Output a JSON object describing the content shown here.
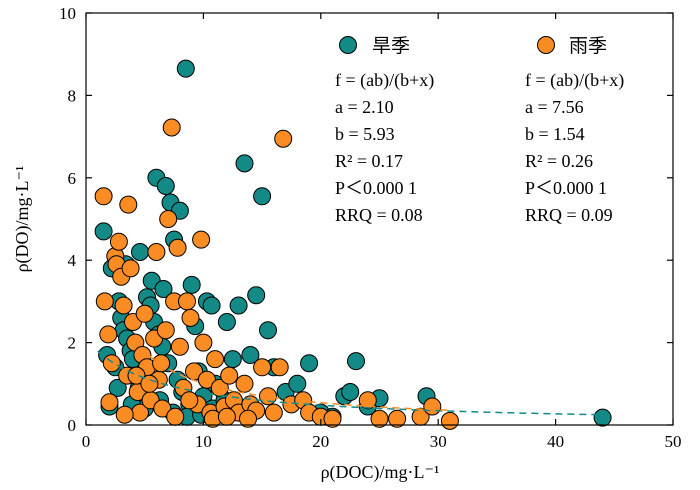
{
  "chart_data": {
    "type": "scatter",
    "xlabel": "ρ(DOC)/mg·L⁻¹",
    "ylabel": "ρ(DO)/mg·L⁻¹",
    "xlim": [
      0,
      50
    ],
    "ylim": [
      0,
      10
    ],
    "x_ticks": [
      "0",
      "10",
      "20",
      "30",
      "40",
      "50"
    ],
    "y_ticks": [
      "0",
      "2",
      "4",
      "6",
      "8",
      "10"
    ],
    "grid": false,
    "legend_position": "top-right",
    "series": [
      {
        "name": "旱季",
        "color": "#138a86",
        "fit": {
          "a": 2.1,
          "b": 5.93,
          "x_range": [
            1,
            44
          ]
        },
        "stats": [
          "f = (ab)/(b+x)",
          "a = 2.10",
          "b = 5.93",
          "R² = 0.17",
          "P＜0.000 1",
          "RRQ = 0.08"
        ],
        "points": [
          [
            1.5,
            4.7
          ],
          [
            1.8,
            1.7
          ],
          [
            2.0,
            0.45
          ],
          [
            2.5,
            1.4
          ],
          [
            2.8,
            3.0
          ],
          [
            3.0,
            2.6
          ],
          [
            3.2,
            2.3
          ],
          [
            3.5,
            2.1
          ],
          [
            3.8,
            1.8
          ],
          [
            4.0,
            1.6
          ],
          [
            4.2,
            1.2
          ],
          [
            4.5,
            0.9
          ],
          [
            4.8,
            0.6
          ],
          [
            5.0,
            0.4
          ],
          [
            5.2,
            3.1
          ],
          [
            5.5,
            2.9
          ],
          [
            5.8,
            2.5
          ],
          [
            6.0,
            6.0
          ],
          [
            6.2,
            2.2
          ],
          [
            6.5,
            1.9
          ],
          [
            6.8,
            5.8
          ],
          [
            7.0,
            1.5
          ],
          [
            7.2,
            5.4
          ],
          [
            7.5,
            4.5
          ],
          [
            7.8,
            1.1
          ],
          [
            8.0,
            5.2
          ],
          [
            8.2,
            0.8
          ],
          [
            8.5,
            8.65
          ],
          [
            8.8,
            0.5
          ],
          [
            9.0,
            3.4
          ],
          [
            9.3,
            2.4
          ],
          [
            9.6,
            1.3
          ],
          [
            10.0,
            0.7
          ],
          [
            10.3,
            3.0
          ],
          [
            10.7,
            2.9
          ],
          [
            11.0,
            1.0
          ],
          [
            11.5,
            0.3
          ],
          [
            12.0,
            2.5
          ],
          [
            12.5,
            1.6
          ],
          [
            13.0,
            2.9
          ],
          [
            13.5,
            6.35
          ],
          [
            14.0,
            1.7
          ],
          [
            14.5,
            3.15
          ],
          [
            15.0,
            5.55
          ],
          [
            15.5,
            2.3
          ],
          [
            16.0,
            1.4
          ],
          [
            17.0,
            0.8
          ],
          [
            18.0,
            1.0
          ],
          [
            19.0,
            1.5
          ],
          [
            20.0,
            0.3
          ],
          [
            21.0,
            0.2
          ],
          [
            22.0,
            0.7
          ],
          [
            22.5,
            0.8
          ],
          [
            23.0,
            1.55
          ],
          [
            24.0,
            0.45
          ],
          [
            25.0,
            0.65
          ],
          [
            29.0,
            0.7
          ],
          [
            44.0,
            0.18
          ],
          [
            2.2,
            3.8
          ],
          [
            3.4,
            3.9
          ],
          [
            4.6,
            4.2
          ],
          [
            5.6,
            3.5
          ],
          [
            6.6,
            3.3
          ],
          [
            2.7,
            0.9
          ],
          [
            3.9,
            0.5
          ],
          [
            4.9,
            1.0
          ],
          [
            6.3,
            0.6
          ],
          [
            7.4,
            0.3
          ],
          [
            8.6,
            0.2
          ],
          [
            9.8,
            0.25
          ],
          [
            10.8,
            0.4
          ],
          [
            11.8,
            0.6
          ],
          [
            12.8,
            0.35
          ]
        ]
      },
      {
        "name": "雨季",
        "color": "#fb8c23",
        "fit": {
          "a": 7.56,
          "b": 1.54,
          "x_range": [
            4,
            31
          ]
        },
        "stats": [
          "f = (ab)/(b+x)",
          "a = 7.56",
          "b = 1.54",
          "R² = 0.26",
          "P＜0.000 1",
          "RRQ = 0.09"
        ],
        "points": [
          [
            1.5,
            5.55
          ],
          [
            1.6,
            3.0
          ],
          [
            1.9,
            2.2
          ],
          [
            2.2,
            1.5
          ],
          [
            2.5,
            4.1
          ],
          [
            2.6,
            3.9
          ],
          [
            2.8,
            4.45
          ],
          [
            3.0,
            3.6
          ],
          [
            3.2,
            2.9
          ],
          [
            3.5,
            1.2
          ],
          [
            3.6,
            5.35
          ],
          [
            3.8,
            3.8
          ],
          [
            4.0,
            2.5
          ],
          [
            4.2,
            2.0
          ],
          [
            4.4,
            0.8
          ],
          [
            4.6,
            0.3
          ],
          [
            4.8,
            1.7
          ],
          [
            5.0,
            2.7
          ],
          [
            5.2,
            1.4
          ],
          [
            5.5,
            0.6
          ],
          [
            5.8,
            2.1
          ],
          [
            6.0,
            4.2
          ],
          [
            6.2,
            1.1
          ],
          [
            6.5,
            0.4
          ],
          [
            6.8,
            2.3
          ],
          [
            7.0,
            5.0
          ],
          [
            7.3,
            7.22
          ],
          [
            7.5,
            3.0
          ],
          [
            7.8,
            4.3
          ],
          [
            8.0,
            1.9
          ],
          [
            8.3,
            0.9
          ],
          [
            8.6,
            3.0
          ],
          [
            8.9,
            2.6
          ],
          [
            9.2,
            1.3
          ],
          [
            9.5,
            0.5
          ],
          [
            9.8,
            4.5
          ],
          [
            10.0,
            2.0
          ],
          [
            10.3,
            1.1
          ],
          [
            10.6,
            0.3
          ],
          [
            11.0,
            1.6
          ],
          [
            11.4,
            0.9
          ],
          [
            11.8,
            0.45
          ],
          [
            12.2,
            1.2
          ],
          [
            12.6,
            0.6
          ],
          [
            13.0,
            0.3
          ],
          [
            13.5,
            1.0
          ],
          [
            14.0,
            0.5
          ],
          [
            14.5,
            0.35
          ],
          [
            15.0,
            1.4
          ],
          [
            15.5,
            0.7
          ],
          [
            16.0,
            0.3
          ],
          [
            16.5,
            1.4
          ],
          [
            16.8,
            6.95
          ],
          [
            17.5,
            0.5
          ],
          [
            18.5,
            0.6
          ],
          [
            19.0,
            0.3
          ],
          [
            20.0,
            0.2
          ],
          [
            21.0,
            0.15
          ],
          [
            24.0,
            0.6
          ],
          [
            25.0,
            0.15
          ],
          [
            26.5,
            0.15
          ],
          [
            28.5,
            0.2
          ],
          [
            29.5,
            0.45
          ],
          [
            31.0,
            0.1
          ],
          [
            2.0,
            0.55
          ],
          [
            3.3,
            0.25
          ],
          [
            4.3,
            1.2
          ],
          [
            5.4,
            1.0
          ],
          [
            6.4,
            1.5
          ],
          [
            7.6,
            0.2
          ],
          [
            8.8,
            0.6
          ],
          [
            10.8,
            0.15
          ],
          [
            12.0,
            0.2
          ],
          [
            13.8,
            0.15
          ]
        ]
      }
    ]
  }
}
